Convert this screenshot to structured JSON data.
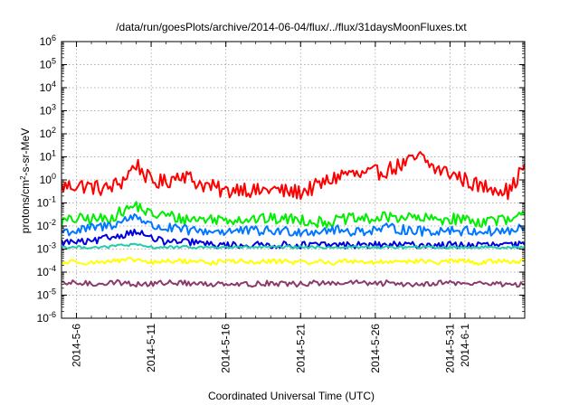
{
  "chart_data": {
    "type": "line",
    "title": "/data/run/goesPlots/archive/2014-06-04/flux/../flux/31daysMoonFluxes.txt",
    "xlabel": "Coordinated Universal Time (UTC)",
    "ylabel": "protons/cm2-s-sr-MeV",
    "yscale": "log",
    "ylim": [
      1e-06,
      1000000.0
    ],
    "y_ticks": [
      {
        "base": "10",
        "exp": "-6"
      },
      {
        "base": "10",
        "exp": "-5"
      },
      {
        "base": "10",
        "exp": "-4"
      },
      {
        "base": "10",
        "exp": "-3"
      },
      {
        "base": "10",
        "exp": "-2"
      },
      {
        "base": "10",
        "exp": "-1"
      },
      {
        "base": "10",
        "exp": "0"
      },
      {
        "base": "10",
        "exp": "1"
      },
      {
        "base": "10",
        "exp": "2"
      },
      {
        "base": "10",
        "exp": "3"
      },
      {
        "base": "10",
        "exp": "4"
      },
      {
        "base": "10",
        "exp": "5"
      },
      {
        "base": "10",
        "exp": "6"
      }
    ],
    "xlim": [
      "2014-05-05",
      "2014-06-05"
    ],
    "x_ticks": [
      "2014-5-6",
      "2014-5-11",
      "2014-5-16",
      "2014-5-21",
      "2014-5-26",
      "2014-5-31",
      "2014-6-1"
    ],
    "x_tick_dates": [
      "2014-05-06",
      "2014-05-11",
      "2014-05-16",
      "2014-05-21",
      "2014-05-26",
      "2014-05-31",
      "2014-06-01"
    ],
    "grid": true,
    "x": [
      "2014-05-05",
      "2014-05-06",
      "2014-05-07",
      "2014-05-08",
      "2014-05-09",
      "2014-05-10",
      "2014-05-11",
      "2014-05-12",
      "2014-05-13",
      "2014-05-14",
      "2014-05-15",
      "2014-05-16",
      "2014-05-17",
      "2014-05-18",
      "2014-05-19",
      "2014-05-20",
      "2014-05-21",
      "2014-05-22",
      "2014-05-23",
      "2014-05-24",
      "2014-05-25",
      "2014-05-26",
      "2014-05-27",
      "2014-05-28",
      "2014-05-29",
      "2014-05-30",
      "2014-05-31",
      "2014-06-01",
      "2014-06-02",
      "2014-06-03",
      "2014-06-04",
      "2014-06-05"
    ],
    "series": [
      {
        "color": "#ff0000",
        "values": [
          0.5,
          0.6,
          0.5,
          0.4,
          0.8,
          5,
          0.8,
          0.8,
          2,
          0.8,
          0.5,
          0.3,
          0.5,
          0.3,
          0.4,
          0.3,
          0.3,
          0.5,
          1,
          2,
          1.5,
          2,
          3,
          5,
          10,
          3,
          2,
          1,
          0.5,
          0.5,
          0.3,
          5
        ]
      },
      {
        "color": "#00ee00",
        "values": [
          0.015,
          0.02,
          0.02,
          0.02,
          0.04,
          0.08,
          0.03,
          0.03,
          0.02,
          0.02,
          0.02,
          0.02,
          0.02,
          0.02,
          0.02,
          0.02,
          0.02,
          0.015,
          0.015,
          0.02,
          0.02,
          0.02,
          0.025,
          0.025,
          0.02,
          0.02,
          0.02,
          0.02,
          0.015,
          0.02,
          0.015,
          0.03
        ]
      },
      {
        "color": "#0077ff",
        "values": [
          0.006,
          0.006,
          0.008,
          0.01,
          0.015,
          0.03,
          0.01,
          0.008,
          0.007,
          0.006,
          0.006,
          0.006,
          0.006,
          0.006,
          0.006,
          0.006,
          0.006,
          0.006,
          0.007,
          0.006,
          0.006,
          0.007,
          0.008,
          0.007,
          0.006,
          0.006,
          0.007,
          0.006,
          0.006,
          0.006,
          0.006,
          0.008
        ]
      },
      {
        "color": "#0000dd",
        "values": [
          0.002,
          0.002,
          0.002,
          0.003,
          0.004,
          0.006,
          0.003,
          0.002,
          0.002,
          0.002,
          0.0015,
          0.0015,
          0.0015,
          0.0015,
          0.0015,
          0.0015,
          0.0015,
          0.0015,
          0.0015,
          0.0015,
          0.0015,
          0.0015,
          0.0015,
          0.0015,
          0.0015,
          0.0015,
          0.0015,
          0.0015,
          0.0015,
          0.0015,
          0.0015,
          0.0015
        ]
      },
      {
        "color": "#22ccaa",
        "values": [
          0.0012,
          0.0012,
          0.0012,
          0.0012,
          0.0015,
          0.0015,
          0.0012,
          0.0012,
          0.0012,
          0.0012,
          0.0012,
          0.0012,
          0.0012,
          0.0012,
          0.0012,
          0.0012,
          0.0012,
          0.0012,
          0.0012,
          0.0012,
          0.0012,
          0.0012,
          0.0012,
          0.0012,
          0.0012,
          0.0012,
          0.0012,
          0.0012,
          0.0012,
          0.0012,
          0.0012,
          0.0012
        ]
      },
      {
        "color": "#ffff00",
        "values": [
          0.00025,
          0.0003,
          0.00025,
          0.0003,
          0.0003,
          0.00035,
          0.00025,
          0.0003,
          0.0003,
          0.0003,
          0.00025,
          0.0003,
          0.0003,
          0.00025,
          0.0003,
          0.0003,
          0.00025,
          0.0003,
          0.00025,
          0.0003,
          0.0003,
          0.00025,
          0.0003,
          0.0003,
          0.0003,
          0.00025,
          0.0003,
          0.0003,
          0.00025,
          0.0003,
          0.0003,
          0.0003
        ]
      },
      {
        "color": "#8b3a6b",
        "values": [
          3e-05,
          3.5e-05,
          3e-05,
          3.5e-05,
          3.5e-05,
          3e-05,
          3e-05,
          3.5e-05,
          3.5e-05,
          3e-05,
          3e-05,
          3.5e-05,
          3e-05,
          3e-05,
          3.5e-05,
          3e-05,
          3e-05,
          3.5e-05,
          3e-05,
          3.5e-05,
          3.5e-05,
          3e-05,
          3.5e-05,
          3e-05,
          3e-05,
          3.5e-05,
          3.5e-05,
          3e-05,
          3.5e-05,
          3e-05,
          3e-05,
          3e-05
        ]
      }
    ]
  }
}
